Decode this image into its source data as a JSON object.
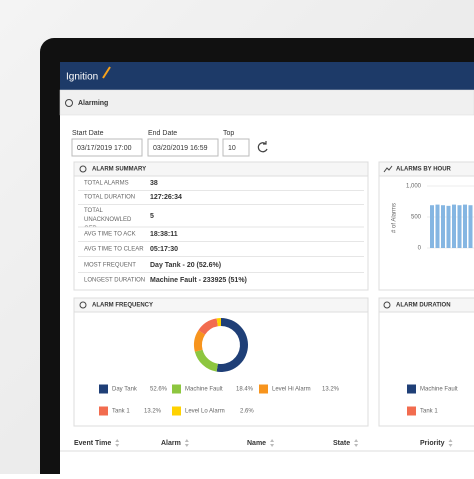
{
  "header": {
    "logo": "Ignition"
  },
  "toolbar": {
    "title": "Alarming"
  },
  "filters": [
    {
      "label": "Start Date",
      "value": "03/17/2019 17:00"
    },
    {
      "label": "End Date",
      "value": "03/20/2019 16:59"
    },
    {
      "label": "Top",
      "value": "10"
    }
  ],
  "alarm_summary": {
    "title": "ALARM SUMMARY",
    "rows": [
      [
        "TOTAL ALARMS",
        "38"
      ],
      [
        "TOTAL DURATION",
        "127:26:34"
      ],
      [
        "TOTAL UNACKNOWLEDGED",
        "5"
      ],
      [
        "AVG TIME TO ACK",
        "18:38:11"
      ],
      [
        "AVG TIME TO CLEAR",
        "05:17:30"
      ],
      [
        "MOST FREQUENT",
        "Day Tank - 20 (52.6%)"
      ],
      [
        "LONGEST DURATION",
        "Machine Fault - 233925 (51%)"
      ]
    ]
  },
  "alarms_by_hour": {
    "title": "ALARMS BY HOUR",
    "y_label": "# of Alarms",
    "ylim": [
      0,
      1000
    ],
    "yticks": [
      0,
      500,
      {
        "value": 1000,
        "label": "1,000"
      }
    ],
    "color": "#85b6e2",
    "values": [
      690,
      700,
      690,
      680,
      700,
      690,
      700,
      690
    ]
  },
  "alarm_frequency": {
    "title": "ALARM FREQUENCY",
    "items": [
      {
        "name": "Day Tank",
        "value": 52.6,
        "label": "52.6%",
        "color": "#1f3f77"
      },
      {
        "name": "Machine Fault",
        "value": 18.4,
        "label": "18.4%",
        "color": "#8dc63f"
      },
      {
        "name": "Level Hi Alarm",
        "value": 13.2,
        "label": "13.2%",
        "color": "#f7941d"
      },
      {
        "name": "Tank 1",
        "value": 13.2,
        "label": "13.2%",
        "color": "#f26c4f"
      },
      {
        "name": "Level Lo Alarm",
        "value": 2.6,
        "label": "2.6%",
        "color": "#ffd200"
      }
    ]
  },
  "alarm_duration": {
    "title": "ALARM DURATION",
    "items": [
      {
        "name": "Machine Fault",
        "color": "#1f3f77"
      },
      {
        "name": "Tank 1",
        "color": "#f26c4f"
      }
    ]
  },
  "table": {
    "columns": [
      "Event Time",
      "Alarm",
      "Name",
      "State",
      "Priority"
    ]
  }
}
